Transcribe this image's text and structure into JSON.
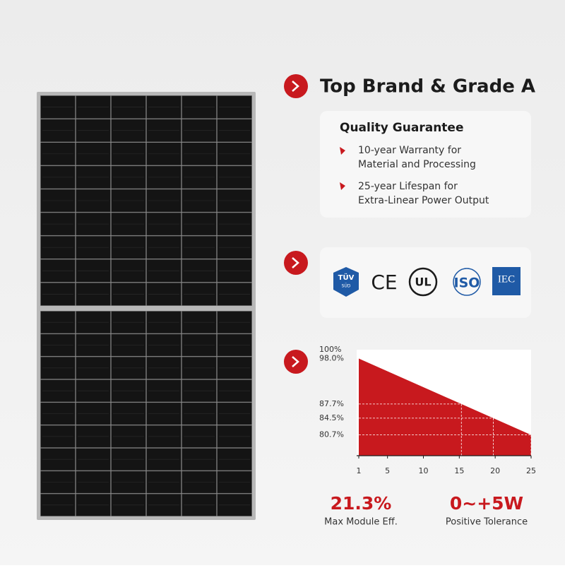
{
  "header": {
    "title": "Top Brand & Grade A"
  },
  "quality_card": {
    "title": "Quality Guarantee",
    "items": [
      [
        "10-year Warranty for",
        "Material and Processing"
      ],
      [
        "25-year Lifespan for",
        "Extra-Linear Power Output"
      ]
    ]
  },
  "certifications": {
    "tuv": [
      "TÜV",
      "SÜD"
    ],
    "ce": "CE",
    "ul": "UL",
    "iso": "ISO",
    "iec": "IEC"
  },
  "degradation_chart": {
    "type": "area",
    "x": [
      1,
      25
    ],
    "series": [
      {
        "color": "#c8191e",
        "values": [
          98,
          80.7
        ]
      }
    ],
    "xlim": [
      1,
      25
    ],
    "ylim": [
      76,
      100
    ],
    "xticks": [
      1,
      5,
      10,
      15,
      20,
      25
    ],
    "yticks": [
      {
        "value": 100,
        "label": "100%"
      },
      {
        "value": 98,
        "label": "98.0%"
      },
      {
        "value": 87.7,
        "label": "87.7%"
      },
      {
        "value": 84.5,
        "label": "84.5%"
      },
      {
        "value": 80.7,
        "label": "80.7%"
      }
    ]
  },
  "stats": [
    {
      "value": "21.3%",
      "label": "Max Module Eff."
    },
    {
      "value": "0~+5W",
      "label": "Positive Tolerance"
    }
  ]
}
